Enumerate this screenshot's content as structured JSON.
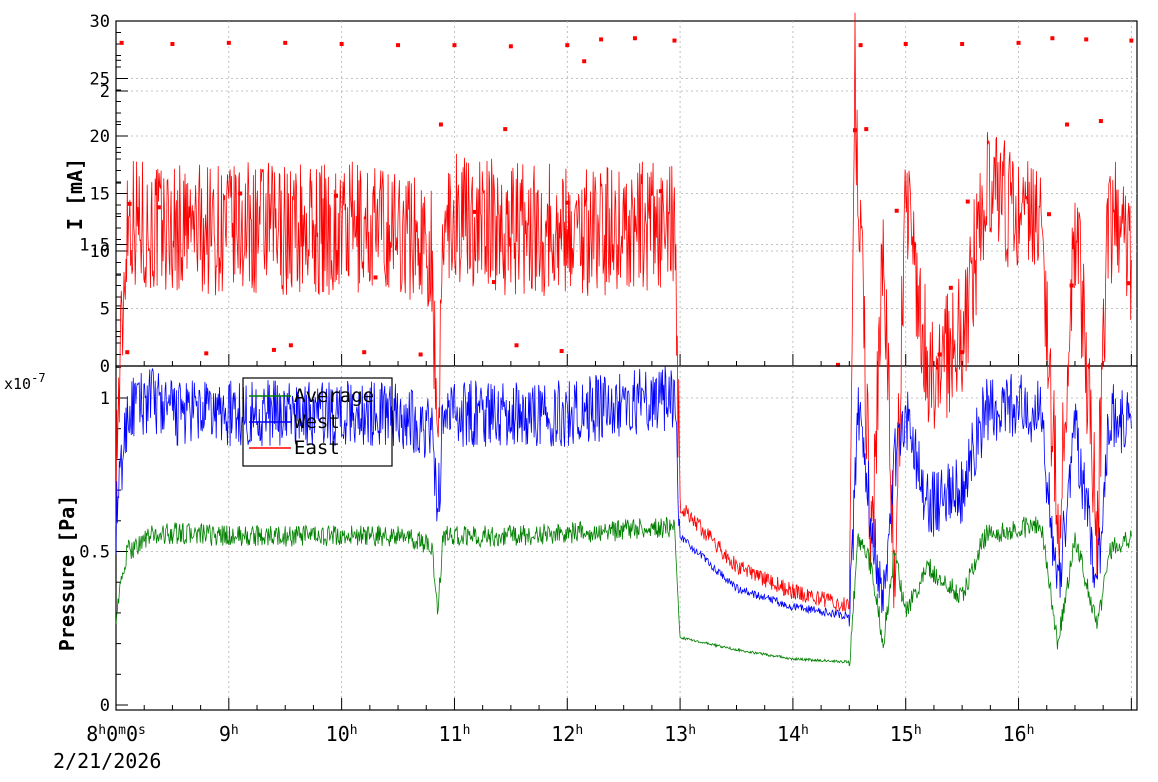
{
  "chart_data": [
    {
      "type": "scatter",
      "ylabel": "I [mA]",
      "ylim": [
        0,
        30
      ],
      "y_ticks": [
        "0",
        "5",
        "10",
        "15",
        "20",
        "25",
        "30"
      ],
      "grid": true,
      "series": [
        {
          "color": "#ff0000",
          "values": [
            {
              "x": 8.05,
              "y": 28.1
            },
            {
              "x": 8.5,
              "y": 28.0
            },
            {
              "x": 9.0,
              "y": 28.1
            },
            {
              "x": 9.5,
              "y": 28.1
            },
            {
              "x": 10.0,
              "y": 28.0
            },
            {
              "x": 10.5,
              "y": 27.9
            },
            {
              "x": 11.0,
              "y": 27.9
            },
            {
              "x": 11.5,
              "y": 27.8
            },
            {
              "x": 12.0,
              "y": 27.9
            },
            {
              "x": 12.15,
              "y": 26.5
            },
            {
              "x": 12.3,
              "y": 28.4
            },
            {
              "x": 12.6,
              "y": 28.5
            },
            {
              "x": 12.95,
              "y": 28.3
            },
            {
              "x": 14.6,
              "y": 27.9
            },
            {
              "x": 15.0,
              "y": 28.0
            },
            {
              "x": 15.5,
              "y": 28.0
            },
            {
              "x": 16.0,
              "y": 28.1
            },
            {
              "x": 16.3,
              "y": 28.5
            },
            {
              "x": 16.6,
              "y": 28.4
            },
            {
              "x": 17.0,
              "y": 28.3
            },
            {
              "x": 8.12,
              "y": 14.1
            },
            {
              "x": 8.38,
              "y": 13.8
            },
            {
              "x": 9.1,
              "y": 15.0
            },
            {
              "x": 9.95,
              "y": 14.8
            },
            {
              "x": 10.3,
              "y": 7.7
            },
            {
              "x": 10.88,
              "y": 21.0
            },
            {
              "x": 11.18,
              "y": 13.4
            },
            {
              "x": 11.35,
              "y": 7.3
            },
            {
              "x": 11.45,
              "y": 20.6
            },
            {
              "x": 12.0,
              "y": 14.2
            },
            {
              "x": 12.83,
              "y": 15.2
            },
            {
              "x": 14.55,
              "y": 20.5
            },
            {
              "x": 14.65,
              "y": 20.6
            },
            {
              "x": 14.92,
              "y": 13.5
            },
            {
              "x": 15.4,
              "y": 6.8
            },
            {
              "x": 15.55,
              "y": 14.3
            },
            {
              "x": 16.27,
              "y": 13.2
            },
            {
              "x": 16.43,
              "y": 21.0
            },
            {
              "x": 16.47,
              "y": 7.0
            },
            {
              "x": 16.73,
              "y": 21.3
            },
            {
              "x": 16.98,
              "y": 7.2
            },
            {
              "x": 8.1,
              "y": 1.2
            },
            {
              "x": 8.8,
              "y": 1.1
            },
            {
              "x": 9.4,
              "y": 1.4
            },
            {
              "x": 9.55,
              "y": 1.8
            },
            {
              "x": 10.2,
              "y": 1.2
            },
            {
              "x": 10.7,
              "y": 1.0
            },
            {
              "x": 11.55,
              "y": 1.8
            },
            {
              "x": 11.95,
              "y": 1.3
            },
            {
              "x": 15.3,
              "y": 1.0
            },
            {
              "x": 15.5,
              "y": 1.2
            },
            {
              "x": 14.4,
              "y": 0.1
            }
          ]
        }
      ]
    },
    {
      "type": "line",
      "ylabel": "Pressure [Pa]",
      "y_multiplier": "x10",
      "y_multiplier_exp": "-7",
      "ylim": [
        0,
        2.15
      ],
      "y_ticks": [
        "0",
        "0.5",
        "1",
        "1.5",
        "2"
      ],
      "x_ticks": [
        "8h0m0s",
        "9h",
        "10h",
        "11h",
        "12h",
        "13h",
        "14h",
        "15h",
        "16h"
      ],
      "x_start_date": "2/21/2026",
      "xlim": [
        8.0,
        17.05
      ],
      "grid": true,
      "legend": "top-left",
      "series": [
        {
          "name": "Average",
          "color": "#008000",
          "points": [
            [
              8.0,
              0.3
            ],
            [
              8.1,
              0.5
            ],
            [
              8.3,
              0.55
            ],
            [
              8.5,
              0.56
            ],
            [
              9.0,
              0.55
            ],
            [
              9.5,
              0.55
            ],
            [
              10.0,
              0.55
            ],
            [
              10.5,
              0.55
            ],
            [
              10.8,
              0.52
            ],
            [
              10.85,
              0.3
            ],
            [
              10.9,
              0.55
            ],
            [
              11.5,
              0.55
            ],
            [
              12.0,
              0.56
            ],
            [
              12.5,
              0.57
            ],
            [
              12.95,
              0.58
            ],
            [
              13.0,
              0.22
            ],
            [
              13.5,
              0.18
            ],
            [
              14.0,
              0.15
            ],
            [
              14.5,
              0.14
            ],
            [
              14.58,
              0.55
            ],
            [
              14.7,
              0.45
            ],
            [
              14.8,
              0.2
            ],
            [
              14.9,
              0.5
            ],
            [
              15.0,
              0.3
            ],
            [
              15.2,
              0.45
            ],
            [
              15.5,
              0.35
            ],
            [
              15.7,
              0.55
            ],
            [
              16.0,
              0.58
            ],
            [
              16.2,
              0.58
            ],
            [
              16.35,
              0.2
            ],
            [
              16.5,
              0.55
            ],
            [
              16.7,
              0.25
            ],
            [
              16.8,
              0.5
            ],
            [
              17.0,
              0.55
            ]
          ]
        },
        {
          "name": "West",
          "color": "#0000ff",
          "points": [
            [
              8.0,
              0.6
            ],
            [
              8.1,
              0.95
            ],
            [
              8.3,
              1.0
            ],
            [
              8.5,
              0.95
            ],
            [
              9.0,
              0.95
            ],
            [
              9.5,
              0.95
            ],
            [
              10.0,
              0.95
            ],
            [
              10.5,
              0.95
            ],
            [
              10.8,
              0.9
            ],
            [
              10.85,
              0.6
            ],
            [
              10.9,
              0.95
            ],
            [
              11.5,
              0.95
            ],
            [
              12.0,
              0.95
            ],
            [
              12.5,
              0.98
            ],
            [
              12.95,
              1.0
            ],
            [
              13.0,
              0.55
            ],
            [
              13.5,
              0.38
            ],
            [
              14.0,
              0.32
            ],
            [
              14.5,
              0.29
            ],
            [
              14.58,
              0.95
            ],
            [
              14.7,
              0.6
            ],
            [
              14.8,
              0.35
            ],
            [
              14.9,
              0.8
            ],
            [
              15.0,
              0.95
            ],
            [
              15.2,
              0.65
            ],
            [
              15.5,
              0.7
            ],
            [
              15.7,
              0.95
            ],
            [
              16.0,
              0.98
            ],
            [
              16.2,
              0.95
            ],
            [
              16.35,
              0.35
            ],
            [
              16.5,
              0.9
            ],
            [
              16.7,
              0.4
            ],
            [
              16.8,
              0.95
            ],
            [
              17.0,
              0.9
            ]
          ]
        },
        {
          "name": "East",
          "color": "#ff0000",
          "points": [
            [
              8.0,
              0.8
            ],
            [
              8.1,
              1.6
            ],
            [
              8.3,
              1.55
            ],
            [
              8.5,
              1.55
            ],
            [
              9.0,
              1.55
            ],
            [
              9.5,
              1.55
            ],
            [
              10.0,
              1.55
            ],
            [
              10.5,
              1.55
            ],
            [
              10.8,
              1.5
            ],
            [
              10.85,
              0.7
            ],
            [
              10.9,
              1.6
            ],
            [
              11.5,
              1.55
            ],
            [
              12.0,
              1.55
            ],
            [
              12.5,
              1.55
            ],
            [
              12.95,
              1.55
            ],
            [
              13.0,
              0.65
            ],
            [
              13.5,
              0.45
            ],
            [
              14.0,
              0.37
            ],
            [
              14.5,
              0.32
            ],
            [
              14.55,
              2.05
            ],
            [
              14.6,
              1.5
            ],
            [
              14.7,
              0.5
            ],
            [
              14.8,
              1.55
            ],
            [
              14.9,
              0.4
            ],
            [
              15.0,
              1.65
            ],
            [
              15.2,
              1.1
            ],
            [
              15.5,
              1.2
            ],
            [
              15.7,
              1.65
            ],
            [
              16.0,
              1.6
            ],
            [
              16.2,
              1.65
            ],
            [
              16.35,
              0.55
            ],
            [
              16.5,
              1.6
            ],
            [
              16.7,
              0.6
            ],
            [
              16.8,
              1.6
            ],
            [
              17.0,
              1.45
            ]
          ]
        }
      ]
    }
  ]
}
